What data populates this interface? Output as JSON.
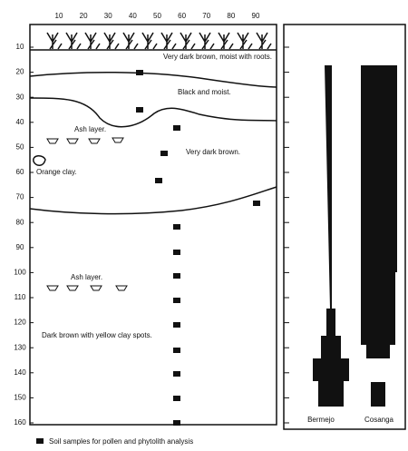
{
  "top_axis": {
    "ticks": [
      10,
      20,
      30,
      40,
      50,
      60,
      70,
      80,
      90
    ]
  },
  "depth_axis": {
    "ticks": [
      10,
      20,
      30,
      40,
      50,
      60,
      70,
      80,
      90,
      100,
      110,
      120,
      130,
      140,
      150,
      160
    ]
  },
  "layers": [
    "Very dark brown, moist with roots.",
    "Black and moist.",
    "Very dark brown.",
    "Dark brown with yellow clay spots."
  ],
  "annotations": [
    "Ash layer.",
    "Orange clay.",
    "Ash layer."
  ],
  "columns": [
    "Bermejo",
    "Cosanga"
  ],
  "legend": "Soil samples for pollen and phytolith analysis"
}
